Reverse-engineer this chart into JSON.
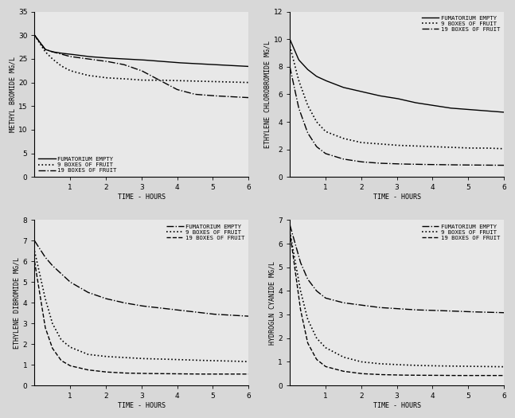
{
  "background_color": "#d8d8d8",
  "panel_bg": "#e8e8e8",
  "text_color": "#000000",
  "methyl_bromide": {
    "ylabel": "METHYL BROMIDE MG/L",
    "xlabel": "TIME - HOURS",
    "ylim": [
      0,
      35
    ],
    "yticks": [
      0,
      5,
      10,
      15,
      20,
      25,
      30,
      35
    ],
    "xlim": [
      0,
      6
    ],
    "xticks": [
      1,
      2,
      3,
      4,
      5,
      6
    ],
    "legend_loc": "lower left",
    "curves": {
      "FUMATORIUM EMPTY": {
        "style": "-",
        "lw": 1.0,
        "t": [
          0,
          0.3,
          0.5,
          0.75,
          1.0,
          1.5,
          2.0,
          2.5,
          3.0,
          3.5,
          4.0,
          4.5,
          5.0,
          5.5,
          6.0
        ],
        "v": [
          30.0,
          27.0,
          26.5,
          26.2,
          26.0,
          25.5,
          25.2,
          25.0,
          24.8,
          24.5,
          24.2,
          24.0,
          23.8,
          23.6,
          23.4
        ]
      },
      "9 BOXES OF FRUIT": {
        "style": ":",
        "lw": 1.2,
        "t": [
          0,
          0.3,
          0.5,
          0.75,
          1.0,
          1.5,
          2.0,
          2.5,
          3.0,
          3.5,
          4.0,
          4.5,
          5.0,
          5.5,
          6.0
        ],
        "v": [
          30.0,
          26.5,
          25.0,
          23.5,
          22.5,
          21.5,
          21.0,
          20.8,
          20.5,
          20.5,
          20.4,
          20.3,
          20.2,
          20.1,
          20.0
        ]
      },
      "19 BOXES OF FRUIT": {
        "style": "-.",
        "lw": 1.0,
        "t": [
          0,
          0.3,
          0.5,
          0.75,
          1.0,
          1.5,
          2.0,
          2.5,
          3.0,
          3.5,
          4.0,
          4.5,
          5.0,
          5.5,
          6.0
        ],
        "v": [
          30.0,
          27.0,
          26.5,
          26.0,
          25.5,
          25.0,
          24.5,
          23.8,
          22.5,
          20.5,
          18.5,
          17.5,
          17.2,
          17.0,
          16.8
        ]
      }
    }
  },
  "ethylene_chlorobromide": {
    "ylabel": "ETHYLENE CHLOROBROMIDE MG/L",
    "xlabel": "TIME - HOURS",
    "ylim": [
      0,
      12
    ],
    "yticks": [
      0,
      2,
      4,
      6,
      8,
      10,
      12
    ],
    "xlim": [
      0,
      6
    ],
    "xticks": [
      1,
      2,
      3,
      4,
      5,
      6
    ],
    "legend_loc": "upper right",
    "curves": {
      "FUMATORIUM EMPTY": {
        "style": "-",
        "lw": 1.0,
        "t": [
          0,
          0.25,
          0.5,
          0.75,
          1.0,
          1.5,
          2.0,
          2.5,
          3.0,
          3.5,
          4.0,
          4.5,
          5.0,
          5.5,
          6.0
        ],
        "v": [
          10.0,
          8.5,
          7.8,
          7.3,
          7.0,
          6.5,
          6.2,
          5.9,
          5.7,
          5.4,
          5.2,
          5.0,
          4.9,
          4.8,
          4.7
        ]
      },
      "9 BOXES OF FRUIT": {
        "style": ":",
        "lw": 1.2,
        "t": [
          0,
          0.25,
          0.5,
          0.75,
          1.0,
          1.5,
          2.0,
          2.5,
          3.0,
          3.5,
          4.0,
          4.5,
          5.0,
          5.5,
          6.0
        ],
        "v": [
          9.5,
          7.0,
          5.2,
          4.0,
          3.3,
          2.8,
          2.5,
          2.4,
          2.3,
          2.25,
          2.2,
          2.15,
          2.1,
          2.1,
          2.05
        ]
      },
      "19 BOXES OF FRUIT": {
        "style": "-.",
        "lw": 1.0,
        "t": [
          0,
          0.25,
          0.5,
          0.75,
          1.0,
          1.5,
          2.0,
          2.5,
          3.0,
          3.5,
          4.0,
          4.5,
          5.0,
          5.5,
          6.0
        ],
        "v": [
          8.0,
          5.0,
          3.2,
          2.2,
          1.7,
          1.3,
          1.1,
          1.0,
          0.95,
          0.92,
          0.9,
          0.88,
          0.87,
          0.86,
          0.85
        ]
      }
    }
  },
  "ethylene_dibromide": {
    "ylabel": "ETHYLENE DIBROMIDE MG/L",
    "xlabel": "TIME - HOURS",
    "ylim": [
      0,
      8
    ],
    "yticks": [
      0,
      1,
      2,
      3,
      4,
      5,
      6,
      7,
      8
    ],
    "xlim": [
      0,
      6
    ],
    "xticks": [
      1,
      2,
      3,
      4,
      5,
      6
    ],
    "legend_loc": "upper right",
    "curves": {
      "FUMATORIUM EMPTY": {
        "style": "-.",
        "lw": 1.0,
        "t": [
          0,
          0.3,
          0.5,
          0.75,
          1.0,
          1.5,
          2.0,
          2.5,
          3.0,
          3.5,
          4.0,
          4.5,
          5.0,
          5.5,
          6.0
        ],
        "v": [
          7.0,
          6.2,
          5.8,
          5.4,
          5.0,
          4.5,
          4.2,
          4.0,
          3.85,
          3.75,
          3.65,
          3.55,
          3.45,
          3.4,
          3.35
        ]
      },
      "9 BOXES OF FRUIT": {
        "style": ":",
        "lw": 1.2,
        "t": [
          0,
          0.3,
          0.5,
          0.75,
          1.0,
          1.5,
          2.0,
          2.5,
          3.0,
          3.5,
          4.0,
          4.5,
          5.0,
          5.5,
          6.0
        ],
        "v": [
          6.5,
          4.2,
          3.0,
          2.2,
          1.85,
          1.5,
          1.4,
          1.35,
          1.3,
          1.28,
          1.25,
          1.22,
          1.2,
          1.18,
          1.15
        ]
      },
      "19 BOXES OF FRUIT": {
        "style": "--",
        "lw": 1.0,
        "t": [
          0,
          0.3,
          0.5,
          0.75,
          1.0,
          1.5,
          2.0,
          2.5,
          3.0,
          3.5,
          4.0,
          4.5,
          5.0,
          5.5,
          6.0
        ],
        "v": [
          6.0,
          2.8,
          1.8,
          1.2,
          0.95,
          0.75,
          0.65,
          0.6,
          0.58,
          0.57,
          0.56,
          0.55,
          0.55,
          0.55,
          0.55
        ]
      }
    }
  },
  "hydrocyanic_acid": {
    "ylabel": "HYDROGLN CYANIDE MG/L",
    "xlabel": "TIME - HOURS",
    "ylim": [
      0,
      7
    ],
    "yticks": [
      0,
      1,
      2,
      3,
      4,
      5,
      6,
      7
    ],
    "xlim": [
      0,
      6
    ],
    "xticks": [
      1,
      2,
      3,
      4,
      5,
      6
    ],
    "legend_loc": "upper right",
    "curves": {
      "FUMATORIUM EMPTY": {
        "style": "-.",
        "lw": 1.0,
        "t": [
          0,
          0.3,
          0.5,
          0.75,
          1.0,
          1.5,
          2.0,
          2.5,
          3.0,
          3.5,
          4.0,
          4.5,
          5.0,
          5.5,
          6.0
        ],
        "v": [
          6.8,
          5.2,
          4.5,
          4.0,
          3.7,
          3.5,
          3.4,
          3.3,
          3.25,
          3.2,
          3.18,
          3.15,
          3.12,
          3.1,
          3.08
        ]
      },
      "9 BOXES OF FRUIT": {
        "style": ":",
        "lw": 1.2,
        "t": [
          0,
          0.3,
          0.5,
          0.75,
          1.0,
          1.5,
          2.0,
          2.5,
          3.0,
          3.5,
          4.0,
          4.5,
          5.0,
          5.5,
          6.0
        ],
        "v": [
          6.5,
          4.0,
          2.8,
          2.0,
          1.6,
          1.2,
          1.0,
          0.92,
          0.88,
          0.85,
          0.83,
          0.82,
          0.81,
          0.8,
          0.79
        ]
      },
      "19 BOXES OF FRUIT": {
        "style": "--",
        "lw": 1.0,
        "t": [
          0,
          0.3,
          0.5,
          0.75,
          1.0,
          1.5,
          2.0,
          2.5,
          3.0,
          3.5,
          4.0,
          4.5,
          5.0,
          5.5,
          6.0
        ],
        "v": [
          6.5,
          3.2,
          1.8,
          1.1,
          0.8,
          0.6,
          0.5,
          0.46,
          0.44,
          0.43,
          0.43,
          0.42,
          0.42,
          0.42,
          0.42
        ]
      }
    }
  },
  "font_size": 6.0,
  "tick_font_size": 6.5,
  "legend_font_size": 5.2,
  "axis_lw": 0.8
}
